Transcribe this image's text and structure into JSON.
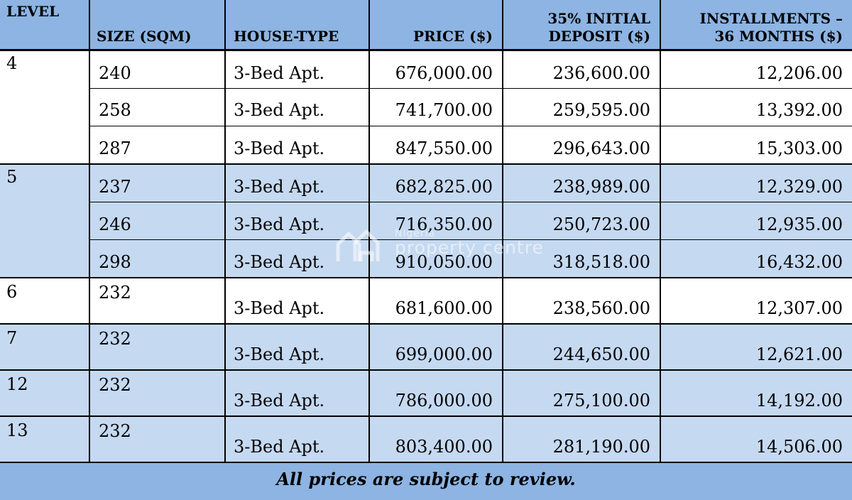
{
  "colors": {
    "header_bg": "#8DB4E2",
    "row_blue": "#C5D9F1",
    "row_white": "#FFFFFF",
    "border": "#000000",
    "text": "#000000"
  },
  "watermark": {
    "icon": "house-pair-icon",
    "line1": "Nigeria",
    "line2": "property centre"
  },
  "table": {
    "columns": [
      {
        "key": "level",
        "label": "LEVEL",
        "align": "left"
      },
      {
        "key": "size",
        "label": "SIZE (SQM)",
        "align": "left"
      },
      {
        "key": "house_type",
        "label": "HOUSE-TYPE",
        "align": "left"
      },
      {
        "key": "price",
        "label": "PRICE ($)",
        "align": "right"
      },
      {
        "key": "deposit",
        "label": "35% INITIAL\nDEPOSIT ($)",
        "align": "right"
      },
      {
        "key": "installments",
        "label": "INSTALLMENTS –\n36 MONTHS ($)",
        "align": "right"
      }
    ],
    "groups": [
      {
        "level": "4",
        "shade": "white",
        "rows": [
          {
            "size": "240",
            "house_type": "3-Bed Apt.",
            "price": "676,000.00",
            "deposit": "236,600.00",
            "installments": "12,206.00"
          },
          {
            "size": "258",
            "house_type": "3-Bed Apt.",
            "price": "741,700.00",
            "deposit": "259,595.00",
            "installments": "13,392.00"
          },
          {
            "size": "287",
            "house_type": "3-Bed Apt.",
            "price": "847,550.00",
            "deposit": "296,643.00",
            "installments": "15,303.00"
          }
        ]
      },
      {
        "level": "5",
        "shade": "blue",
        "rows": [
          {
            "size": "237",
            "house_type": "3-Bed Apt.",
            "price": "682,825.00",
            "deposit": "238,989.00",
            "installments": "12,329.00"
          },
          {
            "size": "246",
            "house_type": "3-Bed Apt.",
            "price": "716,350.00",
            "deposit": "250,723.00",
            "installments": "12,935.00"
          },
          {
            "size": "298",
            "house_type": "3-Bed Apt.",
            "price": "910,050.00",
            "deposit": "318,518.00",
            "installments": "16,432.00"
          }
        ]
      },
      {
        "level": "6",
        "shade": "white",
        "rows": [
          {
            "size": "232",
            "house_type": "3-Bed Apt.",
            "price": "681,600.00",
            "deposit": "238,560.00",
            "installments": "12,307.00"
          }
        ]
      },
      {
        "level": "7",
        "shade": "blue",
        "rows": [
          {
            "size": "232",
            "house_type": "3-Bed Apt.",
            "price": "699,000.00",
            "deposit": "244,650.00",
            "installments": "12,621.00"
          }
        ]
      },
      {
        "level": "12",
        "shade": "blue",
        "rows": [
          {
            "size": "232",
            "house_type": "3-Bed Apt.",
            "price": "786,000.00",
            "deposit": "275,100.00",
            "installments": "14,192.00"
          }
        ]
      },
      {
        "level": "13",
        "shade": "blue",
        "rows": [
          {
            "size": "232",
            "house_type": "3-Bed Apt.",
            "price": "803,400.00",
            "deposit": "281,190.00",
            "installments": "14,506.00"
          }
        ]
      }
    ],
    "footer": "All prices are subject to review."
  }
}
